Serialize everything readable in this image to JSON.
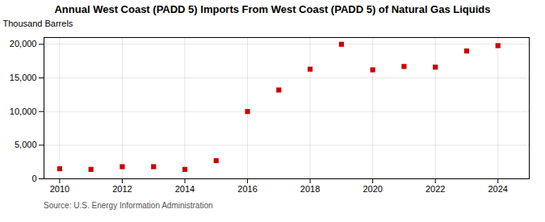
{
  "chart_data": {
    "type": "scatter",
    "title": "Annual West Coast (PADD 5) Imports From West Coast (PADD 5) of Natural Gas Liquids",
    "ylabel": "Thousand Barrels",
    "source": "Source: U.S. Energy Information Administration",
    "x": [
      2010,
      2011,
      2012,
      2013,
      2014,
      2015,
      2016,
      2017,
      2018,
      2019,
      2020,
      2021,
      2022,
      2023,
      2024
    ],
    "values": [
      1500,
      1400,
      1800,
      1800,
      1400,
      2700,
      10000,
      13200,
      16300,
      20000,
      16200,
      16700,
      16600,
      19000,
      19800
    ],
    "color": "#cc0000",
    "marker": "square",
    "xlim": [
      2009.5,
      2025
    ],
    "xticks": [
      2010,
      2012,
      2014,
      2016,
      2018,
      2020,
      2022,
      2024
    ],
    "ylim": [
      0,
      21000
    ],
    "yticks": [
      0,
      {
        "value": 5000,
        "label": "5,000"
      },
      {
        "value": 10000,
        "label": "10,000"
      },
      {
        "value": 15000,
        "label": "15,000"
      },
      {
        "value": 20000,
        "label": "20,000"
      }
    ],
    "grid": true
  }
}
